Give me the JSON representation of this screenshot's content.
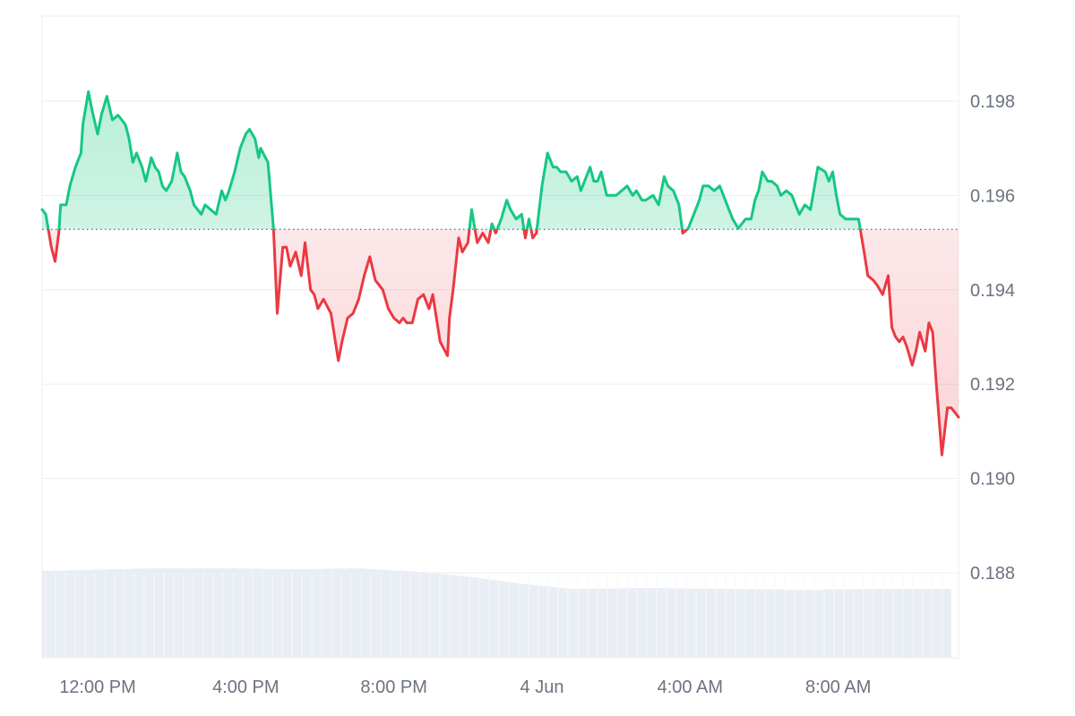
{
  "chart_data": {
    "type": "line",
    "title": "",
    "xlabel": "",
    "ylabel": "",
    "baseline": 0.19528,
    "ylim": [
      0.1862,
      0.1998
    ],
    "y_ticks": [
      0.198,
      0.196,
      0.194,
      0.192,
      0.19,
      0.188
    ],
    "y_tick_labels": [
      "0.198",
      "0.196",
      "0.194",
      "0.192",
      "0.190",
      "0.188"
    ],
    "x_range": [
      10.5,
      35.25
    ],
    "x_unit": "hours since 12:00 AM 3 Jun",
    "x_ticks": [
      12,
      16,
      20,
      24,
      28,
      32
    ],
    "x_tick_labels": [
      "12:00 PM",
      "4:00 PM",
      "8:00 PM",
      "4 Jun",
      "4:00 AM",
      "8:00 AM"
    ],
    "colors": {
      "above": "#16c784",
      "below": "#ea3943",
      "grid": "#eceef1",
      "baseline": "#6b7280",
      "volume": "#e9eef4"
    },
    "series": [
      {
        "x": [
          10.5,
          10.6,
          10.75,
          10.85,
          10.95,
          11.0,
          11.15,
          11.25,
          11.4,
          11.55,
          11.6,
          11.75,
          11.85,
          12.0,
          12.1,
          12.25,
          12.4,
          12.55,
          12.65,
          12.75,
          12.85,
          12.95,
          13.05,
          13.2,
          13.3,
          13.45,
          13.55,
          13.65,
          13.75,
          13.85,
          14.0,
          14.15,
          14.25,
          14.35,
          14.5,
          14.6,
          14.8,
          14.9,
          15.05,
          15.2,
          15.35,
          15.45,
          15.55,
          15.7,
          15.85,
          16.0,
          16.1,
          16.25,
          16.35,
          16.4,
          16.6,
          16.75,
          16.85,
          17.0,
          17.1,
          17.2,
          17.35,
          17.5,
          17.6,
          17.75,
          17.85,
          17.95,
          18.1,
          18.3,
          18.5,
          18.6,
          18.75,
          18.9,
          19.05,
          19.2,
          19.35,
          19.5,
          19.7,
          19.85,
          20.0,
          20.15,
          20.25,
          20.35,
          20.5,
          20.65,
          20.8,
          20.95,
          21.05,
          21.25,
          21.45,
          21.5,
          21.6,
          21.75,
          21.85,
          22.0,
          22.1,
          22.25,
          22.4,
          22.55,
          22.65,
          22.75,
          22.9,
          23.05,
          23.15,
          23.3,
          23.45,
          23.55,
          23.65,
          23.75,
          23.85,
          24.0,
          24.15,
          24.3,
          24.4,
          24.5,
          24.65,
          24.8,
          24.95,
          25.05,
          25.15,
          25.3,
          25.4,
          25.5,
          25.6,
          25.75,
          25.85,
          26.0,
          26.15,
          26.3,
          26.45,
          26.55,
          26.7,
          26.8,
          27.0,
          27.15,
          27.3,
          27.4,
          27.55,
          27.7,
          27.8,
          27.95,
          28.1,
          28.25,
          28.35,
          28.5,
          28.65,
          28.8,
          28.95,
          29.05,
          29.15,
          29.3,
          29.5,
          29.65,
          29.75,
          29.85,
          29.95,
          30.1,
          30.2,
          30.35,
          30.45,
          30.6,
          30.75,
          30.85,
          30.95,
          31.1,
          31.25,
          31.45,
          31.65,
          31.75,
          31.85,
          31.95,
          32.05,
          32.2,
          32.3,
          32.45,
          32.55,
          32.7,
          32.8,
          32.95,
          33.05,
          33.2,
          33.35,
          33.45,
          33.55,
          33.65,
          33.75,
          33.85,
          34.0,
          34.1,
          34.2,
          34.35,
          34.45,
          34.55,
          34.65,
          34.8,
          34.95,
          35.05,
          35.25
        ],
        "y": [
          0.1957,
          0.1956,
          0.1949,
          0.1946,
          0.1952,
          0.1958,
          0.1958,
          0.1962,
          0.1966,
          0.1969,
          0.1975,
          0.1982,
          0.1978,
          0.1973,
          0.1977,
          0.1981,
          0.1976,
          0.1977,
          0.1976,
          0.1975,
          0.1972,
          0.1967,
          0.1969,
          0.1966,
          0.1963,
          0.1968,
          0.1966,
          0.1965,
          0.1962,
          0.1961,
          0.1963,
          0.1969,
          0.1965,
          0.1964,
          0.1961,
          0.1958,
          0.1956,
          0.1958,
          0.1957,
          0.1956,
          0.1961,
          0.1959,
          0.1961,
          0.1965,
          0.197,
          0.1973,
          0.1974,
          0.1972,
          0.1968,
          0.197,
          0.1967,
          0.1953,
          0.1935,
          0.1949,
          0.1949,
          0.1945,
          0.1948,
          0.1943,
          0.195,
          0.194,
          0.1939,
          0.1936,
          0.1938,
          0.1935,
          0.1925,
          0.1929,
          0.1934,
          0.1935,
          0.1938,
          0.1943,
          0.1947,
          0.1942,
          0.194,
          0.1936,
          0.1934,
          0.1933,
          0.1934,
          0.1933,
          0.1933,
          0.1938,
          0.1939,
          0.1936,
          0.1939,
          0.1929,
          0.1926,
          0.1934,
          0.194,
          0.1951,
          0.1948,
          0.195,
          0.1957,
          0.195,
          0.1952,
          0.195,
          0.1954,
          0.1952,
          0.1955,
          0.1959,
          0.1957,
          0.1955,
          0.1956,
          0.1951,
          0.1955,
          0.1951,
          0.1952,
          0.1962,
          0.1969,
          0.1966,
          0.1966,
          0.1965,
          0.1965,
          0.1963,
          0.1964,
          0.1961,
          0.1963,
          0.1966,
          0.1963,
          0.1963,
          0.1965,
          0.196,
          0.196,
          0.196,
          0.1961,
          0.1962,
          0.196,
          0.1961,
          0.1959,
          0.1959,
          0.196,
          0.1958,
          0.1964,
          0.1962,
          0.1961,
          0.1958,
          0.1952,
          0.1953,
          0.1956,
          0.1959,
          0.1962,
          0.1962,
          0.1961,
          0.1962,
          0.1959,
          0.1957,
          0.1955,
          0.1953,
          0.1955,
          0.1955,
          0.1959,
          0.1961,
          0.1965,
          0.1963,
          0.1963,
          0.1962,
          0.196,
          0.1961,
          0.196,
          0.1958,
          0.1956,
          0.1958,
          0.1957,
          0.1966,
          0.1965,
          0.1963,
          0.1965,
          0.196,
          0.1956,
          0.1955,
          0.1955,
          0.1955,
          0.1955,
          0.1948,
          0.1943,
          0.1942,
          0.1941,
          0.1939,
          0.1943,
          0.1932,
          0.193,
          0.1929,
          0.193,
          0.1928,
          0.1924,
          0.1927,
          0.1931,
          0.1927,
          0.1933,
          0.1931,
          0.192,
          0.1905,
          0.1915,
          0.1915,
          0.1913
        ]
      }
    ]
  }
}
